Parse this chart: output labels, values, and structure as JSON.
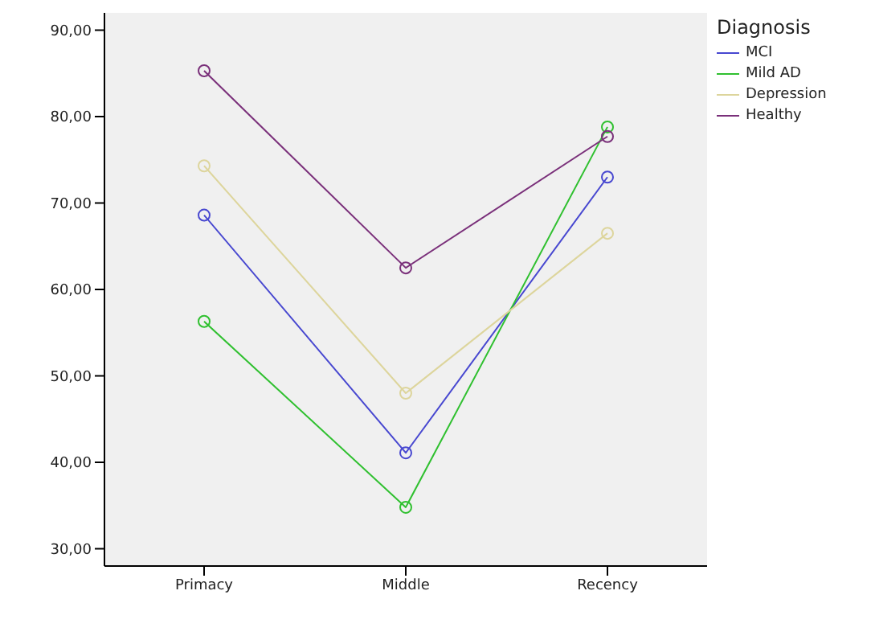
{
  "chart_data": {
    "type": "line",
    "legend_title": "Diagnosis",
    "categories": [
      "Primacy",
      "Middle",
      "Recency"
    ],
    "series": [
      {
        "name": "MCI",
        "color": "#4848d0",
        "values": [
          68.6,
          41.1,
          73.0
        ]
      },
      {
        "name": "Mild AD",
        "color": "#30c030",
        "values": [
          56.3,
          34.8,
          78.8
        ]
      },
      {
        "name": "Depression",
        "color": "#ddd59c",
        "values": [
          74.3,
          48.0,
          66.5
        ]
      },
      {
        "name": "Healthy",
        "color": "#7a307a",
        "values": [
          85.3,
          62.5,
          77.7
        ]
      }
    ],
    "ylim": [
      28,
      92
    ],
    "yticks": [
      {
        "value": 30,
        "label": "30,00"
      },
      {
        "value": 40,
        "label": "40,00"
      },
      {
        "value": 50,
        "label": "50,00"
      },
      {
        "value": 60,
        "label": "60,00"
      },
      {
        "value": 70,
        "label": "70,00"
      },
      {
        "value": 80,
        "label": "80,00"
      },
      {
        "value": 90,
        "label": "90,00"
      }
    ],
    "grid": false,
    "legend": "right",
    "marker": "circle",
    "line_style": "solid"
  }
}
